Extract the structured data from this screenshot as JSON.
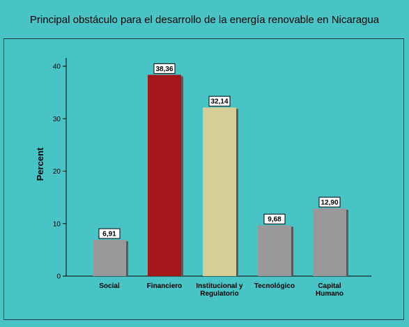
{
  "chart_data": {
    "type": "bar",
    "title": "Principal obstáculo para el desarrollo de la energía renovable en Nicaragua",
    "ylabel": "Percent",
    "xlabel": "",
    "ylim": [
      0,
      40
    ],
    "yticks": [
      "0",
      "10",
      "20",
      "30",
      "40"
    ],
    "categories": [
      [
        "Social"
      ],
      [
        "Financiero"
      ],
      [
        "Institucional y",
        "Regulatorio"
      ],
      [
        "Tecnológico"
      ],
      [
        "Capital",
        "Humano"
      ]
    ],
    "values": [
      6.91,
      38.36,
      32.14,
      9.68,
      12.9
    ],
    "data_labels": [
      "6,91",
      "38,36",
      "32,14",
      "9,68",
      "12,90"
    ],
    "colors": [
      "#999999",
      "#a31619",
      "#d5cf97",
      "#999999",
      "#999999"
    ],
    "grid": false,
    "legend": "none"
  }
}
